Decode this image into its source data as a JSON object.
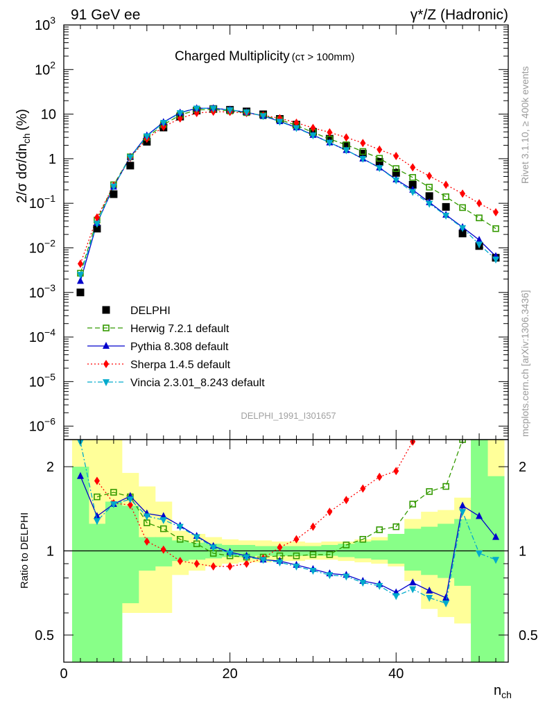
{
  "header": {
    "left": "91 GeV ee",
    "right": "γ*/Z (Hadronic)"
  },
  "side_labels": {
    "rivet": "Rivet 3.1.10, ≥ 400k events",
    "mcplots": "mcplots.cern.ch [arXiv:1306.3436]"
  },
  "chart_data": [
    {
      "type": "scatter",
      "panel": "main",
      "title": "Charged Multiplicity",
      "subtitle": "(cτ > 100mm)",
      "watermark": "DELPHI_1991_I301657",
      "ylabel": "2/σ dσ/dn",
      "ylabel_sub": "ch",
      "ylabel_unit": "(%)",
      "yscale": "log",
      "ylim": [
        5e-07,
        1000
      ],
      "xlim": [
        0,
        53.5
      ],
      "y_ticks": [
        {
          "value": 1000,
          "base": "10",
          "exp": "3"
        },
        {
          "value": 100,
          "base": "10",
          "exp": "2"
        },
        {
          "value": 10,
          "base": "10",
          "exp": ""
        },
        {
          "value": 1,
          "base": "1",
          "exp": ""
        },
        {
          "value": 0.1,
          "base": "10",
          "exp": "−1"
        },
        {
          "value": 0.01,
          "base": "10",
          "exp": "−2"
        },
        {
          "value": 0.001,
          "base": "10",
          "exp": "−3"
        },
        {
          "value": 0.0001,
          "base": "10",
          "exp": "−4"
        },
        {
          "value": 1e-05,
          "base": "10",
          "exp": "−5"
        },
        {
          "value": 1e-06,
          "base": "10",
          "exp": "−6"
        }
      ],
      "legend_position": "lower-left",
      "x": [
        2,
        4,
        6,
        8,
        10,
        12,
        14,
        16,
        18,
        20,
        22,
        24,
        26,
        28,
        30,
        32,
        34,
        36,
        38,
        40,
        42,
        44,
        46,
        48,
        50,
        52
      ],
      "series": [
        {
          "name": "DELPHI",
          "color": "#000000",
          "marker": "square-filled",
          "values": [
            0.001,
            0.027,
            0.16,
            0.7,
            2.4,
            5.0,
            8.8,
            12.0,
            13.0,
            12.5,
            11.5,
            9.9,
            7.8,
            5.8,
            4.0,
            2.8,
            1.95,
            1.3,
            0.85,
            0.48,
            0.26,
            0.145,
            0.083,
            0.021,
            0.011,
            0.006
          ]
        },
        {
          "name": "Herwig 7.2.1 default",
          "color": "#339900",
          "marker": "square-open",
          "line": "dashed",
          "values": [
            0.0027,
            0.042,
            0.26,
            1.1,
            3.0,
            5.8,
            9.5,
            12.5,
            12.7,
            11.8,
            10.8,
            9.2,
            7.5,
            5.6,
            3.9,
            2.75,
            2.05,
            1.45,
            1.02,
            0.6,
            0.38,
            0.23,
            0.14,
            0.08,
            0.047,
            0.027
          ]
        },
        {
          "name": "Pythia 8.308 default",
          "color": "#0000cc",
          "marker": "triangle-up",
          "line": "solid",
          "values": [
            0.0018,
            0.036,
            0.235,
            1.1,
            3.3,
            6.6,
            10.8,
            13.5,
            13.5,
            12.5,
            11.0,
            9.1,
            6.9,
            5.0,
            3.4,
            2.3,
            1.55,
            1.0,
            0.63,
            0.34,
            0.2,
            0.105,
            0.055,
            0.029,
            0.015,
            0.0065
          ]
        },
        {
          "name": "Sherpa 1.4.5 default",
          "color": "#ff0000",
          "marker": "diamond",
          "line": "dotted",
          "values": [
            0.0044,
            0.048,
            0.25,
            1.05,
            2.8,
            5.2,
            8.0,
            10.6,
            11.3,
            11.2,
            10.6,
            9.4,
            8.1,
            6.4,
            4.9,
            3.9,
            3.0,
            2.25,
            1.6,
            1.15,
            0.64,
            0.41,
            0.26,
            0.165,
            0.1,
            0.063
          ]
        },
        {
          "name": "Vincia 2.3.01_8.243 default",
          "color": "#00aacc",
          "marker": "triangle-down",
          "line": "dashdot",
          "values": [
            0.0025,
            0.035,
            0.24,
            1.08,
            3.2,
            6.4,
            10.6,
            13.4,
            13.4,
            12.4,
            11.0,
            9.1,
            6.8,
            4.9,
            3.35,
            2.3,
            1.55,
            1.0,
            0.62,
            0.33,
            0.18,
            0.098,
            0.053,
            0.028,
            0.012,
            0.0055
          ]
        }
      ]
    },
    {
      "type": "line",
      "panel": "ratio",
      "ylabel": "Ratio to DELPHI",
      "xlabel": "n",
      "xlabel_sub": "ch",
      "yscale": "log",
      "ylim": [
        0.4,
        2.5
      ],
      "xlim": [
        0,
        53.5
      ],
      "x_ticks": [
        0,
        20,
        40
      ],
      "y_ticks": [
        0.5,
        1,
        2
      ],
      "band_edges": [
        1,
        3,
        5,
        7,
        9,
        11,
        13,
        15,
        17,
        19,
        21,
        23,
        25,
        27,
        29,
        31,
        33,
        35,
        37,
        39,
        41,
        43,
        45,
        47,
        49,
        51,
        53
      ],
      "band_yellow": [
        [
          0.4,
          2.5
        ],
        [
          0.4,
          2.5
        ],
        [
          0.53,
          2.5
        ],
        [
          0.6,
          1.9
        ],
        [
          0.6,
          1.7
        ],
        [
          0.6,
          1.5
        ],
        [
          0.82,
          1.18
        ],
        [
          0.85,
          1.15
        ],
        [
          0.88,
          1.12
        ],
        [
          0.9,
          1.1
        ],
        [
          0.91,
          1.09
        ],
        [
          0.91,
          1.09
        ],
        [
          0.92,
          1.08
        ],
        [
          0.92,
          1.08
        ],
        [
          0.93,
          1.07
        ],
        [
          0.93,
          1.08
        ],
        [
          0.92,
          1.08
        ],
        [
          0.91,
          1.1
        ],
        [
          0.9,
          1.12
        ],
        [
          0.88,
          1.15
        ],
        [
          0.78,
          1.3
        ],
        [
          0.62,
          1.38
        ],
        [
          0.58,
          1.4
        ],
        [
          0.55,
          1.55
        ],
        [
          0.4,
          2.5
        ],
        [
          0.4,
          2.5
        ]
      ],
      "band_green": [
        [
          0.4,
          2.0
        ],
        [
          0.4,
          1.25
        ],
        [
          0.4,
          1.5
        ],
        [
          0.65,
          1.45
        ],
        [
          0.85,
          1.12
        ],
        [
          0.88,
          1.12
        ],
        [
          0.92,
          1.09
        ],
        [
          0.93,
          1.07
        ],
        [
          0.94,
          1.06
        ],
        [
          0.95,
          1.05
        ],
        [
          0.95,
          1.05
        ],
        [
          0.96,
          1.04
        ],
        [
          0.96,
          1.04
        ],
        [
          0.96,
          1.04
        ],
        [
          0.96,
          1.04
        ],
        [
          0.96,
          1.05
        ],
        [
          0.95,
          1.06
        ],
        [
          0.94,
          1.08
        ],
        [
          0.93,
          1.09
        ],
        [
          0.9,
          1.15
        ],
        [
          0.85,
          1.2
        ],
        [
          0.82,
          1.22
        ],
        [
          0.8,
          1.25
        ],
        [
          0.75,
          1.3
        ],
        [
          0.4,
          2.5
        ],
        [
          0.4,
          1.85
        ]
      ],
      "series": [
        {
          "name": "Herwig 7.2.1 default",
          "color": "#339900",
          "marker": "square-open",
          "line": "dashed",
          "x": [
            4,
            6,
            8,
            10,
            12,
            14,
            16,
            18,
            20,
            22,
            24,
            26,
            28,
            30,
            32,
            34,
            36,
            38,
            40,
            42,
            44,
            46,
            48
          ],
          "values": [
            1.56,
            1.62,
            1.56,
            1.26,
            1.2,
            1.1,
            1.06,
            0.98,
            0.96,
            0.95,
            0.95,
            0.96,
            0.96,
            0.97,
            0.97,
            1.05,
            1.1,
            1.19,
            1.22,
            1.47,
            1.63,
            1.7,
            2.5
          ]
        },
        {
          "name": "Pythia 8.308 default",
          "color": "#0000cc",
          "marker": "triangle-up",
          "line": "solid",
          "x": [
            2,
            4,
            6,
            8,
            10,
            12,
            14,
            16,
            18,
            20,
            22,
            24,
            26,
            28,
            30,
            32,
            34,
            36,
            38,
            40,
            42,
            44,
            46,
            48,
            50,
            52
          ],
          "values": [
            1.85,
            1.33,
            1.47,
            1.57,
            1.36,
            1.33,
            1.23,
            1.13,
            1.04,
            0.99,
            0.96,
            0.93,
            0.92,
            0.89,
            0.86,
            0.83,
            0.82,
            0.78,
            0.76,
            0.71,
            0.77,
            0.72,
            0.68,
            1.45,
            1.33,
            1.12
          ]
        },
        {
          "name": "Sherpa 1.4.5 default",
          "color": "#ff0000",
          "marker": "diamond",
          "line": "dotted",
          "x": [
            4,
            6,
            8,
            10,
            12,
            14,
            16,
            18,
            20,
            22,
            24,
            26,
            28,
            30,
            32,
            34,
            36,
            38,
            40,
            42
          ],
          "values": [
            1.78,
            1.48,
            1.46,
            1.08,
            1.01,
            0.92,
            0.9,
            0.88,
            0.88,
            0.9,
            0.94,
            1.03,
            1.1,
            1.22,
            1.38,
            1.52,
            1.67,
            1.84,
            1.93,
            2.46
          ]
        },
        {
          "name": "Vincia 2.3.01_8.243 default",
          "color": "#00aacc",
          "marker": "triangle-down",
          "line": "dashdot",
          "x": [
            2,
            4,
            6,
            8,
            10,
            12,
            14,
            16,
            18,
            20,
            22,
            24,
            26,
            28,
            30,
            32,
            34,
            36,
            38,
            40,
            42,
            44,
            46,
            48,
            50,
            52
          ],
          "values": [
            2.45,
            1.28,
            1.47,
            1.53,
            1.33,
            1.29,
            1.22,
            1.12,
            1.03,
            0.98,
            0.95,
            0.93,
            0.91,
            0.88,
            0.85,
            0.82,
            0.81,
            0.77,
            0.75,
            0.69,
            0.73,
            0.68,
            0.65,
            1.38,
            0.98,
            0.93
          ]
        }
      ]
    }
  ]
}
